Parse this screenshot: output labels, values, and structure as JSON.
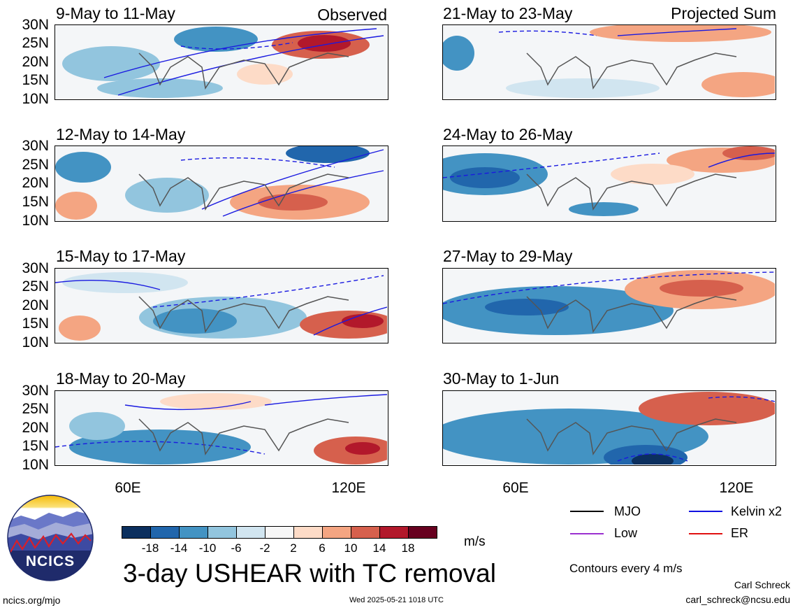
{
  "panels_left": [
    {
      "title": "9-May to 11-May",
      "tag": "Observed"
    },
    {
      "title": "12-May to 14-May",
      "tag": ""
    },
    {
      "title": "15-May to 17-May",
      "tag": ""
    },
    {
      "title": "18-May to 20-May",
      "tag": ""
    }
  ],
  "panels_right": [
    {
      "title": "21-May to 23-May",
      "tag": "Projected Sum"
    },
    {
      "title": "24-May to 26-May",
      "tag": ""
    },
    {
      "title": "27-May to 29-May",
      "tag": ""
    },
    {
      "title": "30-May to 1-Jun",
      "tag": ""
    }
  ],
  "lat_labels": [
    "30N",
    "25N",
    "20N",
    "15N",
    "10N"
  ],
  "lon_labels": [
    "60E",
    "120E"
  ],
  "colorbar": {
    "labels": [
      "-18",
      "-14",
      "-10",
      "-6",
      "-2",
      "2",
      "6",
      "10",
      "14",
      "18"
    ],
    "colors": [
      "#0b2f5e",
      "#2166ac",
      "#4393c3",
      "#92c5de",
      "#d1e5f0",
      "#f7f7f7",
      "#fddbc7",
      "#f4a582",
      "#d6604d",
      "#b2182b",
      "#67001f"
    ],
    "units": "m/s"
  },
  "legend": {
    "items": [
      {
        "label": "MJO",
        "color": "#000000"
      },
      {
        "label": "Kelvin x2",
        "color": "#1010e0"
      },
      {
        "label": "Low",
        "color": "#9b30d0"
      },
      {
        "label": "ER",
        "color": "#e01010"
      }
    ],
    "contours": "Contours every 4 m/s"
  },
  "title": "3-day USHEAR with TC removal",
  "logo_text": "NCICS",
  "footer": {
    "url": "ncics.org/mjo",
    "timestamp": "Wed 2025-05-21 1018 UTC",
    "author": "Carl Schreck",
    "email": "carl_schreck@ncsu.edu"
  }
}
